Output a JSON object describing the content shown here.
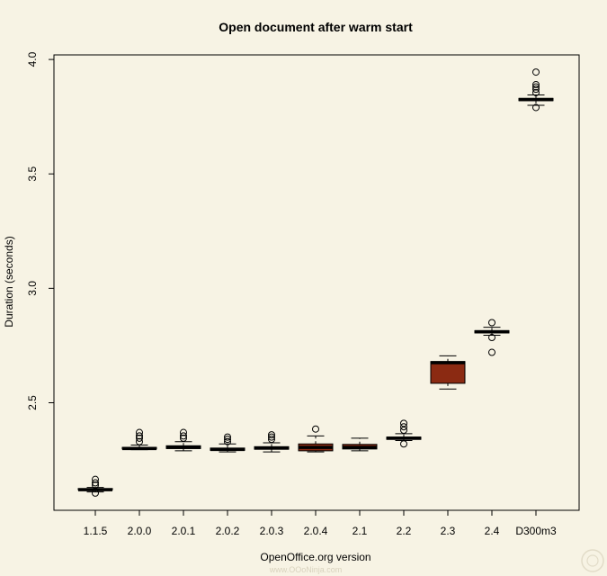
{
  "chart_data": {
    "type": "boxplot",
    "title": "Open document after warm start",
    "xlabel": "OpenOffice.org version",
    "ylabel": "Duration (seconds)",
    "ylim": [
      2.03,
      4.02
    ],
    "yticks": [
      "2.5",
      "3.0",
      "3.5",
      "4.0"
    ],
    "box_color": "#8b2a12",
    "background": "#f7f3e4",
    "watermark": "www.OOoNinja.com",
    "series": [
      {
        "category": "1.1.5",
        "whisker_low": 2.11,
        "q1": 2.12,
        "median": 2.12,
        "q3": 2.125,
        "whisker_high": 2.13,
        "outliers": [
          2.105,
          2.14,
          2.15,
          2.165
        ]
      },
      {
        "category": "2.0.0",
        "whisker_low": 2.295,
        "q1": 2.298,
        "median": 2.3,
        "q3": 2.305,
        "whisker_high": 2.315,
        "outliers": [
          2.33,
          2.345,
          2.355,
          2.37
        ]
      },
      {
        "category": "2.0.1",
        "whisker_low": 2.29,
        "q1": 2.3,
        "median": 2.305,
        "q3": 2.312,
        "whisker_high": 2.33,
        "outliers": [
          2.345,
          2.355,
          2.37
        ]
      },
      {
        "category": "2.0.2",
        "whisker_low": 2.285,
        "q1": 2.292,
        "median": 2.296,
        "q3": 2.302,
        "whisker_high": 2.32,
        "outliers": [
          2.33,
          2.34,
          2.35
        ]
      },
      {
        "category": "2.0.3",
        "whisker_low": 2.285,
        "q1": 2.297,
        "median": 2.302,
        "q3": 2.308,
        "whisker_high": 2.325,
        "outliers": [
          2.34,
          2.35,
          2.36
        ]
      },
      {
        "category": "2.0.4",
        "whisker_low": 2.285,
        "q1": 2.29,
        "median": 2.305,
        "q3": 2.32,
        "whisker_high": 2.355,
        "outliers": [
          2.385
        ]
      },
      {
        "category": "2.1",
        "whisker_low": 2.29,
        "q1": 2.298,
        "median": 2.305,
        "q3": 2.318,
        "whisker_high": 2.345,
        "outliers": []
      },
      {
        "category": "2.2",
        "whisker_low": 2.335,
        "q1": 2.34,
        "median": 2.345,
        "q3": 2.35,
        "whisker_high": 2.365,
        "outliers": [
          2.32,
          2.38,
          2.395,
          2.41
        ]
      },
      {
        "category": "2.3",
        "whisker_low": 2.56,
        "q1": 2.585,
        "median": 2.675,
        "q3": 2.68,
        "whisker_high": 2.705,
        "outliers": []
      },
      {
        "category": "2.4",
        "whisker_low": 2.795,
        "q1": 2.805,
        "median": 2.81,
        "q3": 2.815,
        "whisker_high": 2.83,
        "outliers": [
          2.72,
          2.785,
          2.85
        ]
      },
      {
        "category": "D300m3",
        "whisker_low": 3.8,
        "q1": 3.82,
        "median": 3.825,
        "q3": 3.83,
        "whisker_high": 3.845,
        "outliers": [
          3.79,
          3.855,
          3.87,
          3.88,
          3.89,
          3.945
        ]
      }
    ]
  }
}
